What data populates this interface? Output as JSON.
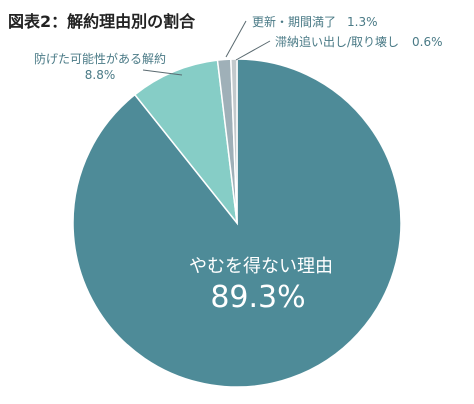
{
  "chart_data": {
    "type": "pie",
    "title": "図表2：解約理由別の割合",
    "slices": [
      {
        "name": "やむを得ない理由",
        "value": 89.3,
        "value_label": "89.3%",
        "color": "#4e8b98"
      },
      {
        "name": "防げた可能性がある解約",
        "value": 8.8,
        "value_label": "8.8%",
        "color": "#86cdc6"
      },
      {
        "name": "更新・期間満了",
        "value": 1.3,
        "value_label": "1.3%",
        "color": "#9fb0b8"
      },
      {
        "name": "滞納追い出し/取り壊し",
        "value": 0.6,
        "value_label": "0.6%",
        "color": "#c3c9cc"
      }
    ]
  }
}
